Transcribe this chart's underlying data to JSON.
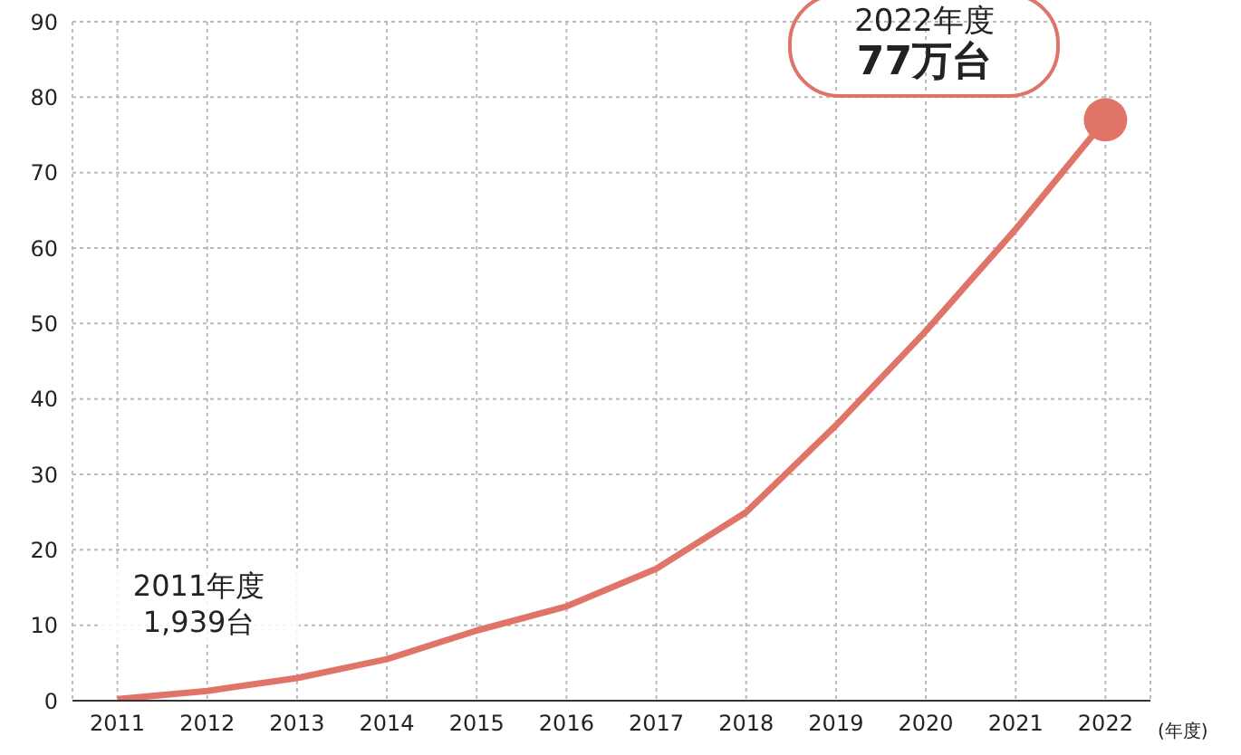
{
  "chart_data": {
    "type": "line",
    "xlabel": "(年度)",
    "categories": [
      "2011",
      "2012",
      "2013",
      "2014",
      "2015",
      "2016",
      "2017",
      "2018",
      "2019",
      "2020",
      "2021",
      "2022"
    ],
    "series": [
      {
        "color": "#e07468",
        "values": [
          0.2,
          1.3,
          3,
          5.5,
          9.3,
          12.5,
          17.5,
          25,
          36.5,
          49,
          62.5,
          77
        ]
      },
      {
        "type": "scatter",
        "color": "#e07468",
        "marker": "circle",
        "values": [
          null,
          null,
          null,
          null,
          null,
          null,
          null,
          null,
          null,
          null,
          null,
          77
        ]
      }
    ],
    "ylim": [
      0,
      90
    ],
    "yticks": [
      0,
      10,
      20,
      30,
      40,
      50,
      60,
      70,
      80,
      90
    ],
    "grid": true,
    "marker": "none",
    "line_style": "solid",
    "annotations": [
      {
        "text": "2011年度\n1,939台",
        "x": "2011",
        "y": 0.2
      },
      {
        "text": "2022年度\n77万台",
        "x": "2022",
        "y": 77
      }
    ]
  }
}
